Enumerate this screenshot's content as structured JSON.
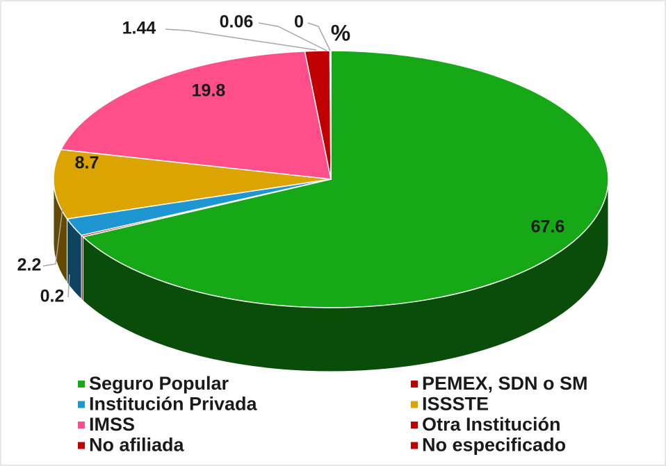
{
  "chart_data": {
    "type": "pie",
    "title": "%",
    "categories": [
      "Seguro Popular",
      "PEMEX, SDN o SM",
      "Institución Privada",
      "ISSSTE",
      "IMSS",
      "Otra Institución",
      "No afiliada",
      "No especificado"
    ],
    "values": [
      67.6,
      0.2,
      2.2,
      8.7,
      19.8,
      1.44,
      0.06,
      0
    ],
    "colors": [
      "#17a817",
      "#c00000",
      "#1e96d2",
      "#dba400",
      "#ff4f8b",
      "#c00000",
      "#c00000",
      "#c00000"
    ]
  }
}
